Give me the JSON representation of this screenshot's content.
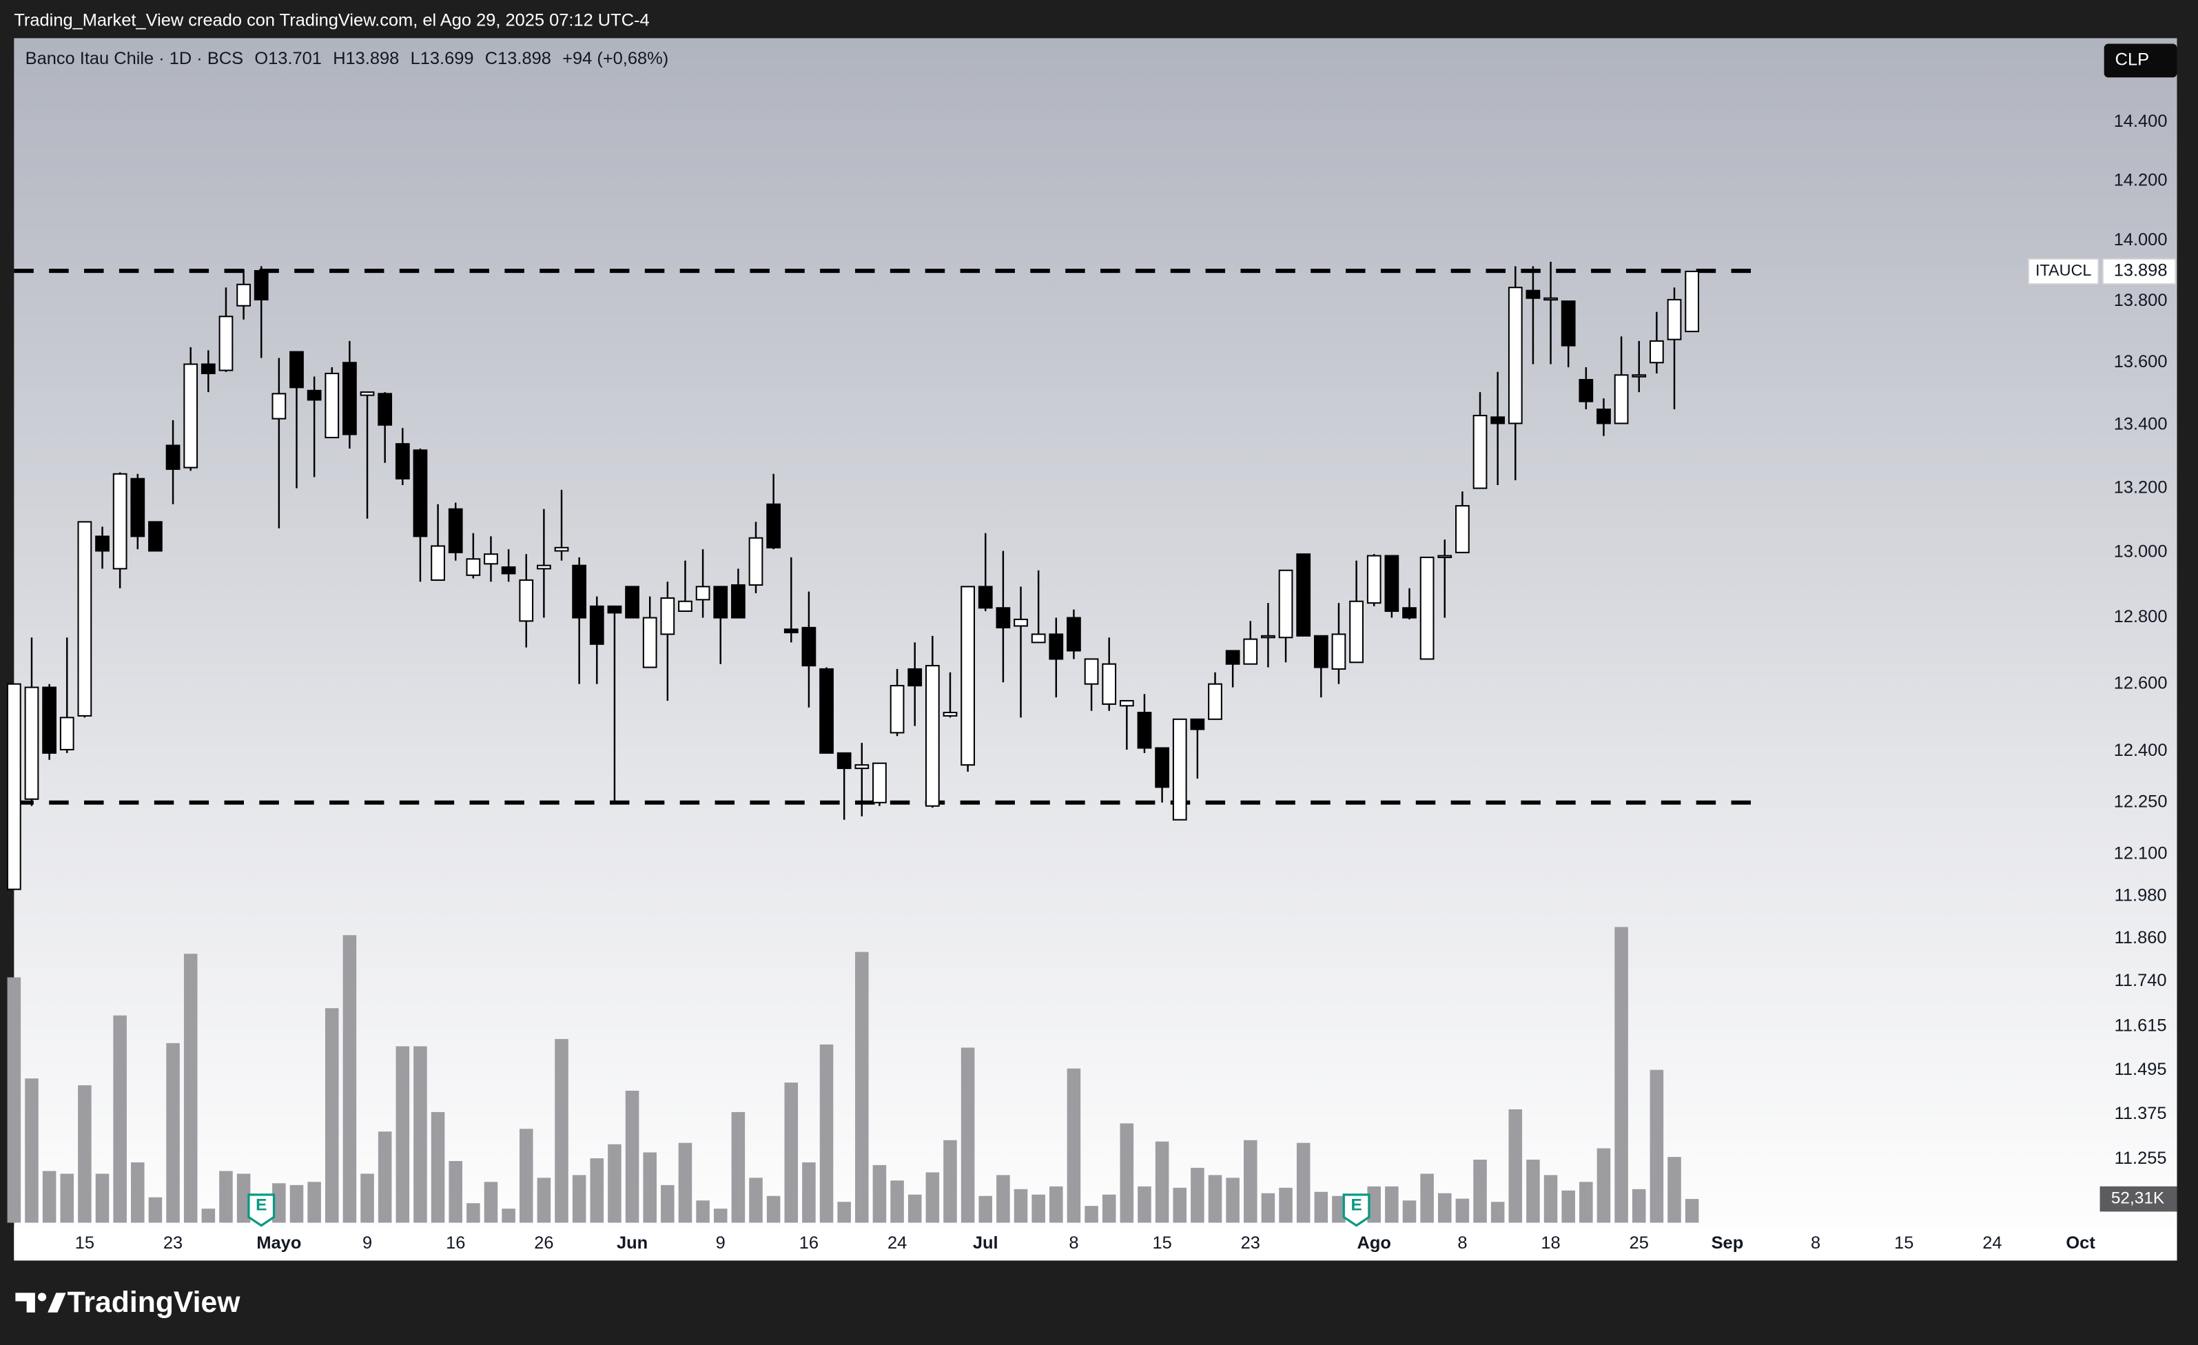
{
  "chart_data": {
    "type": "candlestick",
    "source_note": "Trading_Market_View creado con TradingView.com, el Ago 29, 2025 07:12 UTC-4",
    "title": "Banco Itau Chile · 1D · BCS",
    "legend_items": [
      "O13.701",
      "H13.898",
      "L13.699",
      "C13.898",
      "+94 (+0,68%)"
    ],
    "currency": "CLP",
    "brand": "TradingView",
    "log_scale": true,
    "grid": false,
    "up_color": "#ffffff",
    "down_color": "#000000",
    "xlim": [
      0,
      118.25
    ],
    "ylim": [
      11086,
      14690
    ],
    "xticks": [
      {
        "value": 4,
        "label": "15"
      },
      {
        "value": 9,
        "label": "23"
      },
      {
        "value": 15,
        "label": "Mayo"
      },
      {
        "value": 20,
        "label": "9"
      },
      {
        "value": 25,
        "label": "16"
      },
      {
        "value": 30,
        "label": "26"
      },
      {
        "value": 35,
        "label": "Jun"
      },
      {
        "value": 40,
        "label": "9"
      },
      {
        "value": 45,
        "label": "16"
      },
      {
        "value": 50,
        "label": "24"
      },
      {
        "value": 55,
        "label": "Jul"
      },
      {
        "value": 60,
        "label": "8"
      },
      {
        "value": 65,
        "label": "15"
      },
      {
        "value": 70,
        "label": "23"
      },
      {
        "value": 77,
        "label": "Ago"
      },
      {
        "value": 82,
        "label": "8"
      },
      {
        "value": 87,
        "label": "18"
      },
      {
        "value": 92,
        "label": "25"
      },
      {
        "value": 97,
        "label": "Sep"
      },
      {
        "value": 102,
        "label": "8"
      },
      {
        "value": 107,
        "label": "15"
      },
      {
        "value": 112,
        "label": "24"
      },
      {
        "value": 117,
        "label": "Oct"
      }
    ],
    "yticks": [
      {
        "value": 14400,
        "label": "14.400"
      },
      {
        "value": 14200,
        "label": "14.200"
      },
      {
        "value": 14000,
        "label": "14.000"
      },
      {
        "value": 13800,
        "label": "13.800"
      },
      {
        "value": 13600,
        "label": "13.600"
      },
      {
        "value": 13400,
        "label": "13.400"
      },
      {
        "value": 13200,
        "label": "13.200"
      },
      {
        "value": 13000,
        "label": "13.000"
      },
      {
        "value": 12800,
        "label": "12.800"
      },
      {
        "value": 12600,
        "label": "12.600"
      },
      {
        "value": 12400,
        "label": "12.400"
      },
      {
        "value": 12250,
        "label": "12.250"
      },
      {
        "value": 12100,
        "label": "12.100"
      },
      {
        "value": 11980,
        "label": "11.980"
      },
      {
        "value": 11860,
        "label": "11.860"
      },
      {
        "value": 11740,
        "label": "11.740"
      },
      {
        "value": 11615,
        "label": "11.615"
      },
      {
        "value": 11495,
        "label": "11.495"
      },
      {
        "value": 11375,
        "label": "11.375"
      },
      {
        "value": 11255,
        "label": "11.255"
      }
    ],
    "series": [
      {
        "name": "ITAUCL",
        "open": [
          12000,
          12260,
          12590,
          12405,
          12505,
          13050,
          12950,
          13230,
          13095,
          13335,
          13265,
          13595,
          13575,
          13785,
          13900,
          13420,
          13635,
          13510,
          13360,
          13600,
          13495,
          13500,
          13340,
          13320,
          12915,
          13135,
          12930,
          12965,
          12955,
          12790,
          12950,
          13005,
          12960,
          12835,
          12835,
          12895,
          12650,
          12750,
          12820,
          12855,
          12895,
          12900,
          12900,
          13150,
          12765,
          12770,
          12645,
          12395,
          12350,
          12250,
          12455,
          12645,
          12240,
          12505,
          12360,
          12895,
          12830,
          12775,
          12725,
          12750,
          12800,
          12600,
          12540,
          12535,
          12515,
          12410,
          12200,
          12495,
          12495,
          12700,
          12660,
          12740,
          12740,
          12995,
          12745,
          12645,
          12665,
          12845,
          12990,
          12830,
          12675,
          12985,
          13000,
          13200,
          13425,
          13405,
          13835,
          13805,
          13800,
          13545,
          13450,
          13405,
          13555,
          13600,
          13675,
          13701
        ],
        "high": [
          12600,
          12740,
          12600,
          12740,
          13095,
          13080,
          13250,
          13245,
          13095,
          13415,
          13650,
          13640,
          13845,
          13905,
          13915,
          13615,
          13635,
          13555,
          13585,
          13670,
          13505,
          13505,
          13390,
          13325,
          13150,
          13155,
          13060,
          13050,
          13010,
          12995,
          13135,
          13195,
          12985,
          12865,
          12835,
          12895,
          12865,
          12910,
          12975,
          13010,
          12895,
          12950,
          13095,
          13245,
          12985,
          12880,
          12650,
          12395,
          12425,
          12365,
          12645,
          12725,
          12745,
          12635,
          12895,
          13060,
          13005,
          12895,
          12945,
          12800,
          12825,
          12675,
          12740,
          12550,
          12570,
          12410,
          12495,
          12495,
          12635,
          12700,
          12790,
          12845,
          12945,
          12995,
          12745,
          12845,
          12975,
          12995,
          12990,
          12890,
          12985,
          13040,
          13190,
          13505,
          13570,
          13915,
          13915,
          13930,
          13800,
          13585,
          13485,
          13685,
          13670,
          13765,
          13845,
          13898
        ],
        "low": [
          12000,
          12240,
          12375,
          12395,
          12500,
          12950,
          12890,
          13010,
          13005,
          13150,
          13255,
          13505,
          13570,
          13740,
          13615,
          13075,
          13200,
          13235,
          13360,
          13325,
          13105,
          13280,
          13210,
          12910,
          12915,
          12975,
          12920,
          12910,
          12910,
          12710,
          12800,
          12975,
          12600,
          12600,
          12250,
          12800,
          12650,
          12550,
          12820,
          12800,
          12660,
          12800,
          12875,
          13010,
          12725,
          12530,
          12395,
          12200,
          12210,
          12240,
          12445,
          12475,
          12235,
          12500,
          12340,
          12820,
          12605,
          12500,
          12725,
          12560,
          12675,
          12520,
          12520,
          12405,
          12395,
          12250,
          12200,
          12320,
          12495,
          12590,
          12660,
          12650,
          12665,
          12745,
          12560,
          12600,
          12665,
          12835,
          12800,
          12795,
          12675,
          12800,
          13000,
          13200,
          13210,
          13225,
          13595,
          13595,
          13585,
          13450,
          13365,
          13405,
          13505,
          13565,
          13450,
          13699
        ],
        "close": [
          12600,
          12590,
          12395,
          12500,
          13095,
          13005,
          13245,
          13050,
          13005,
          13260,
          13595,
          13565,
          13750,
          13855,
          13805,
          13500,
          13520,
          13480,
          13565,
          13370,
          13505,
          13400,
          13230,
          13050,
          13020,
          13000,
          12980,
          12995,
          12935,
          12915,
          12960,
          13015,
          12800,
          12720,
          12815,
          12800,
          12800,
          12860,
          12850,
          12895,
          12800,
          12800,
          13045,
          13015,
          12755,
          12655,
          12395,
          12350,
          12360,
          12365,
          12595,
          12595,
          12655,
          12515,
          12895,
          12830,
          12770,
          12795,
          12750,
          12675,
          12700,
          12675,
          12660,
          12550,
          12410,
          12295,
          12495,
          12465,
          12600,
          12660,
          12735,
          12745,
          12945,
          12745,
          12650,
          12750,
          12850,
          12990,
          12820,
          12800,
          12985,
          12990,
          13145,
          13430,
          13405,
          13845,
          13810,
          13810,
          13655,
          13475,
          13405,
          13560,
          13560,
          13670,
          13805,
          13898
        ]
      }
    ],
    "price_label": {
      "value": 13898,
      "label": "13.898"
    },
    "levels": [
      13900,
      12250
    ],
    "volume": {
      "color": "#9c9ca1",
      "ylim": [
        0,
        1700000
      ],
      "values": [
        541000,
        318000,
        114000,
        108000,
        303000,
        108000,
        457000,
        133000,
        56000,
        396000,
        593000,
        31000,
        114000,
        108000,
        62000,
        87000,
        83000,
        90000,
        473000,
        634000,
        108000,
        201000,
        389000,
        389000,
        244000,
        136000,
        43000,
        90000,
        31000,
        207000,
        99000,
        405000,
        105000,
        142000,
        173000,
        291000,
        155000,
        83000,
        176000,
        49000,
        31000,
        244000,
        99000,
        59000,
        309000,
        133000,
        393000,
        46000,
        597000,
        127000,
        93000,
        62000,
        111000,
        182000,
        386000,
        59000,
        105000,
        74000,
        62000,
        80000,
        340000,
        37000,
        62000,
        219000,
        80000,
        179000,
        77000,
        121000,
        105000,
        99000,
        182000,
        65000,
        77000,
        176000,
        68000,
        59000,
        62000,
        80000,
        80000,
        49000,
        108000,
        65000,
        53000,
        139000,
        46000,
        250000,
        139000,
        105000,
        71000,
        90000,
        164000,
        652000,
        74000,
        337000,
        145000,
        52310
      ],
      "last_label": {
        "value": 52310,
        "label": "52,31K"
      }
    },
    "events": [
      {
        "index": 14,
        "label": "E"
      },
      {
        "index": 76,
        "label": "E"
      }
    ]
  }
}
